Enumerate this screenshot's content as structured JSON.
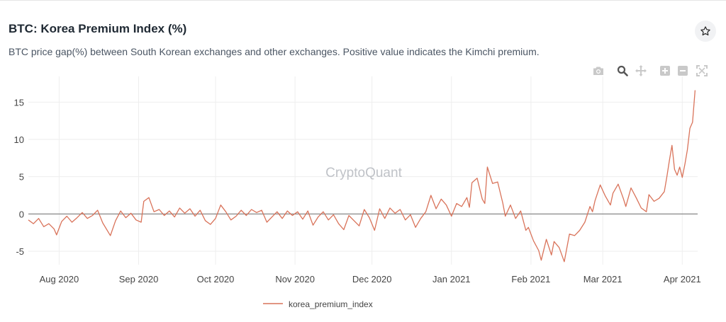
{
  "header": {
    "title": "BTC: Korea Premium Index (%)",
    "subtitle": "BTC price gap(%) between South Korean exchanges and other exchanges. Positive value indicates the Kimchi premium."
  },
  "toolbar": {
    "star_icon": "star-icon",
    "modebar_icons": [
      "camera-icon",
      "zoom-icon",
      "pan-icon",
      "zoom-in-icon",
      "zoom-out-icon",
      "autoscale-icon"
    ]
  },
  "watermark": "CryptoQuant",
  "colors": {
    "series": "#d9735a",
    "zero_line": "#888888",
    "grid": "#eeeeee",
    "tick_text": "#444444"
  },
  "chart_data": {
    "type": "line",
    "title": "BTC: Korea Premium Index (%)",
    "xlabel": "",
    "ylabel": "",
    "x_range": [
      "2020-07-20",
      "2021-04-07"
    ],
    "ylim": [
      -6.8,
      17.5
    ],
    "y_ticks": [
      -5,
      0,
      5,
      10,
      15
    ],
    "x_ticks": [
      {
        "date": "2020-08-01",
        "label": "Aug 2020"
      },
      {
        "date": "2020-09-01",
        "label": "Sep 2020"
      },
      {
        "date": "2020-10-01",
        "label": "Oct 2020"
      },
      {
        "date": "2020-11-01",
        "label": "Nov 2020"
      },
      {
        "date": "2020-12-01",
        "label": "Dec 2020"
      },
      {
        "date": "2021-01-01",
        "label": "Jan 2021"
      },
      {
        "date": "2021-02-01",
        "label": "Feb 2021"
      },
      {
        "date": "2021-03-01",
        "label": "Mar 2021"
      },
      {
        "date": "2021-04-01",
        "label": "Apr 2021"
      }
    ],
    "grid": true,
    "legend_position": "bottom-center",
    "series": [
      {
        "name": "korea_premium_index",
        "points": [
          [
            "2020-07-20",
            -0.8
          ],
          [
            "2020-07-22",
            -1.3
          ],
          [
            "2020-07-24",
            -0.6
          ],
          [
            "2020-07-26",
            -1.7
          ],
          [
            "2020-07-28",
            -1.3
          ],
          [
            "2020-07-30",
            -2.0
          ],
          [
            "2020-07-31",
            -2.8
          ],
          [
            "2020-08-02",
            -1.0
          ],
          [
            "2020-08-04",
            -0.3
          ],
          [
            "2020-08-06",
            -1.1
          ],
          [
            "2020-08-08",
            -0.5
          ],
          [
            "2020-08-10",
            0.2
          ],
          [
            "2020-08-12",
            -0.6
          ],
          [
            "2020-08-14",
            -0.2
          ],
          [
            "2020-08-16",
            0.5
          ],
          [
            "2020-08-18",
            -1.2
          ],
          [
            "2020-08-21",
            -2.9
          ],
          [
            "2020-08-23",
            -0.9
          ],
          [
            "2020-08-25",
            0.4
          ],
          [
            "2020-08-27",
            -0.5
          ],
          [
            "2020-08-29",
            0.1
          ],
          [
            "2020-08-31",
            -0.8
          ],
          [
            "2020-09-02",
            -1.1
          ],
          [
            "2020-09-03",
            1.7
          ],
          [
            "2020-09-05",
            2.2
          ],
          [
            "2020-09-07",
            0.3
          ],
          [
            "2020-09-09",
            0.6
          ],
          [
            "2020-09-11",
            -0.2
          ],
          [
            "2020-09-13",
            0.4
          ],
          [
            "2020-09-15",
            -0.4
          ],
          [
            "2020-09-17",
            0.8
          ],
          [
            "2020-09-19",
            0.1
          ],
          [
            "2020-09-21",
            0.7
          ],
          [
            "2020-09-23",
            -0.3
          ],
          [
            "2020-09-25",
            0.5
          ],
          [
            "2020-09-27",
            -0.9
          ],
          [
            "2020-09-29",
            -1.4
          ],
          [
            "2020-10-01",
            -0.6
          ],
          [
            "2020-10-03",
            1.2
          ],
          [
            "2020-10-05",
            0.3
          ],
          [
            "2020-10-07",
            -0.8
          ],
          [
            "2020-10-09",
            -0.3
          ],
          [
            "2020-10-11",
            0.5
          ],
          [
            "2020-10-13",
            -0.2
          ],
          [
            "2020-10-15",
            0.6
          ],
          [
            "2020-10-17",
            0.2
          ],
          [
            "2020-10-19",
            0.5
          ],
          [
            "2020-10-21",
            -1.1
          ],
          [
            "2020-10-23",
            -0.4
          ],
          [
            "2020-10-25",
            0.3
          ],
          [
            "2020-10-27",
            -0.6
          ],
          [
            "2020-10-29",
            0.4
          ],
          [
            "2020-10-31",
            -0.2
          ],
          [
            "2020-11-02",
            0.3
          ],
          [
            "2020-11-04",
            -0.7
          ],
          [
            "2020-11-06",
            0.4
          ],
          [
            "2020-11-08",
            -1.5
          ],
          [
            "2020-11-10",
            -0.4
          ],
          [
            "2020-11-12",
            0.3
          ],
          [
            "2020-11-14",
            -0.8
          ],
          [
            "2020-11-16",
            -0.1
          ],
          [
            "2020-11-18",
            -1.3
          ],
          [
            "2020-11-20",
            -2.1
          ],
          [
            "2020-11-22",
            -0.2
          ],
          [
            "2020-11-24",
            -0.9
          ],
          [
            "2020-11-26",
            -1.6
          ],
          [
            "2020-11-28",
            0.6
          ],
          [
            "2020-11-30",
            -0.5
          ],
          [
            "2020-12-02",
            -2.2
          ],
          [
            "2020-12-04",
            0.7
          ],
          [
            "2020-12-06",
            -0.6
          ],
          [
            "2020-12-08",
            0.8
          ],
          [
            "2020-12-10",
            0.1
          ],
          [
            "2020-12-12",
            0.6
          ],
          [
            "2020-12-14",
            -0.8
          ],
          [
            "2020-12-16",
            -0.1
          ],
          [
            "2020-12-18",
            -1.8
          ],
          [
            "2020-12-20",
            -0.6
          ],
          [
            "2020-12-22",
            0.3
          ],
          [
            "2020-12-24",
            2.5
          ],
          [
            "2020-12-26",
            0.7
          ],
          [
            "2020-12-28",
            2.0
          ],
          [
            "2020-12-30",
            1.2
          ],
          [
            "2021-01-01",
            -0.3
          ],
          [
            "2021-01-03",
            1.4
          ],
          [
            "2021-01-05",
            1.0
          ],
          [
            "2021-01-07",
            2.2
          ],
          [
            "2021-01-08",
            0.9
          ],
          [
            "2021-01-09",
            4.2
          ],
          [
            "2021-01-11",
            4.8
          ],
          [
            "2021-01-13",
            2.0
          ],
          [
            "2021-01-14",
            1.4
          ],
          [
            "2021-01-15",
            6.3
          ],
          [
            "2021-01-17",
            4.1
          ],
          [
            "2021-01-19",
            4.3
          ],
          [
            "2021-01-21",
            1.5
          ],
          [
            "2021-01-22",
            -0.3
          ],
          [
            "2021-01-24",
            1.2
          ],
          [
            "2021-01-26",
            -0.6
          ],
          [
            "2021-01-28",
            0.4
          ],
          [
            "2021-01-30",
            -2.2
          ],
          [
            "2021-01-31",
            -1.8
          ],
          [
            "2021-02-02",
            -3.6
          ],
          [
            "2021-02-04",
            -4.9
          ],
          [
            "2021-02-05",
            -6.2
          ],
          [
            "2021-02-07",
            -3.4
          ],
          [
            "2021-02-09",
            -5.5
          ],
          [
            "2021-02-10",
            -3.7
          ],
          [
            "2021-02-12",
            -4.5
          ],
          [
            "2021-02-14",
            -6.4
          ],
          [
            "2021-02-16",
            -2.7
          ],
          [
            "2021-02-18",
            -2.9
          ],
          [
            "2021-02-20",
            -2.2
          ],
          [
            "2021-02-22",
            -1.1
          ],
          [
            "2021-02-24",
            1.0
          ],
          [
            "2021-02-25",
            0.3
          ],
          [
            "2021-02-26",
            1.8
          ],
          [
            "2021-02-28",
            3.9
          ],
          [
            "2021-03-02",
            2.4
          ],
          [
            "2021-03-04",
            1.2
          ],
          [
            "2021-03-05",
            2.8
          ],
          [
            "2021-03-07",
            4.0
          ],
          [
            "2021-03-09",
            2.1
          ],
          [
            "2021-03-10",
            1.0
          ],
          [
            "2021-03-12",
            3.5
          ],
          [
            "2021-03-14",
            2.2
          ],
          [
            "2021-03-16",
            0.8
          ],
          [
            "2021-03-18",
            0.3
          ],
          [
            "2021-03-19",
            2.6
          ],
          [
            "2021-03-21",
            1.7
          ],
          [
            "2021-03-23",
            2.1
          ],
          [
            "2021-03-25",
            3.0
          ],
          [
            "2021-03-26",
            5.0
          ],
          [
            "2021-03-27",
            7.2
          ],
          [
            "2021-03-28",
            9.2
          ],
          [
            "2021-03-29",
            6.0
          ],
          [
            "2021-03-30",
            5.2
          ],
          [
            "2021-03-31",
            6.3
          ],
          [
            "2021-04-01",
            4.9
          ],
          [
            "2021-04-02",
            6.6
          ],
          [
            "2021-04-03",
            8.6
          ],
          [
            "2021-04-04",
            11.5
          ],
          [
            "2021-04-05",
            12.3
          ],
          [
            "2021-04-06",
            16.6
          ]
        ]
      }
    ]
  }
}
